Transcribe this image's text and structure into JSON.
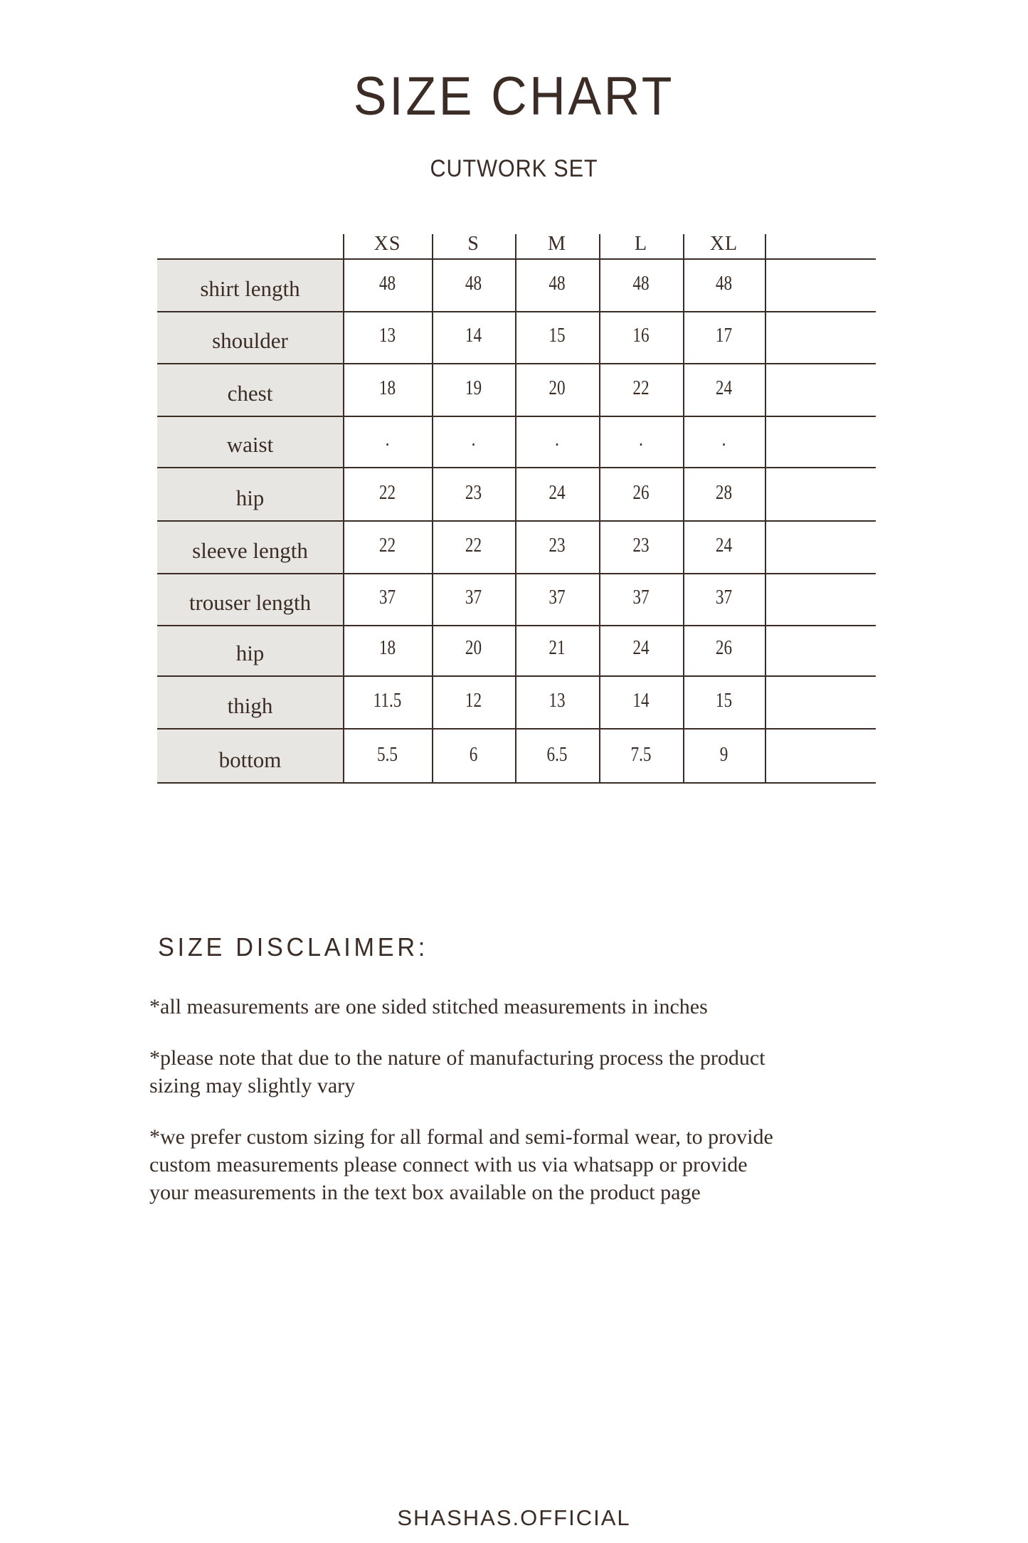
{
  "title": "SIZE CHART",
  "subtitle": "CUTWORK SET",
  "colors": {
    "text": "#3b2c25",
    "label_background": "#e8e6e2",
    "background": "#ffffff"
  },
  "table": {
    "columns": [
      "XS",
      "S",
      "M",
      "L",
      "XL"
    ],
    "rows": [
      {
        "label": "shirt length",
        "values": [
          "48",
          "48",
          "48",
          "48",
          "48"
        ]
      },
      {
        "label": "shoulder",
        "values": [
          "13",
          "14",
          "15",
          "16",
          "17"
        ]
      },
      {
        "label": "chest",
        "values": [
          "18",
          "19",
          "20",
          "22",
          "24"
        ]
      },
      {
        "label": "waist",
        "values": [
          ".",
          ".",
          ".",
          ".",
          "."
        ]
      },
      {
        "label": "hip",
        "values": [
          "22",
          "23",
          "24",
          "26",
          "28"
        ]
      },
      {
        "label": "sleeve length",
        "values": [
          "22",
          "22",
          "23",
          "23",
          "24"
        ]
      },
      {
        "label": "trouser length",
        "values": [
          "37",
          "37",
          "37",
          "37",
          "37"
        ]
      },
      {
        "label": "hip",
        "values": [
          "18",
          "20",
          "21",
          "24",
          "26"
        ]
      },
      {
        "label": "thigh",
        "values": [
          "11.5",
          "12",
          "13",
          "14",
          "15"
        ]
      },
      {
        "label": "bottom",
        "values": [
          "5.5",
          "6",
          "6.5",
          "7.5",
          "9"
        ]
      }
    ]
  },
  "disclaimer": {
    "title": "SIZE DISCLAIMER:",
    "paragraphs": [
      [
        "*all measurements are one sided stitched measurements in inches"
      ],
      [
        "*please note that due to the nature of manufacturing process the product",
        "sizing may slightly vary"
      ],
      [
        "*we prefer custom sizing for all formal and semi-formal wear, to provide",
        "custom measurements please connect with us via whatsapp or provide",
        "your measurements in the text box available on the product page"
      ]
    ]
  },
  "footer": "SHASHAS.OFFICIAL"
}
